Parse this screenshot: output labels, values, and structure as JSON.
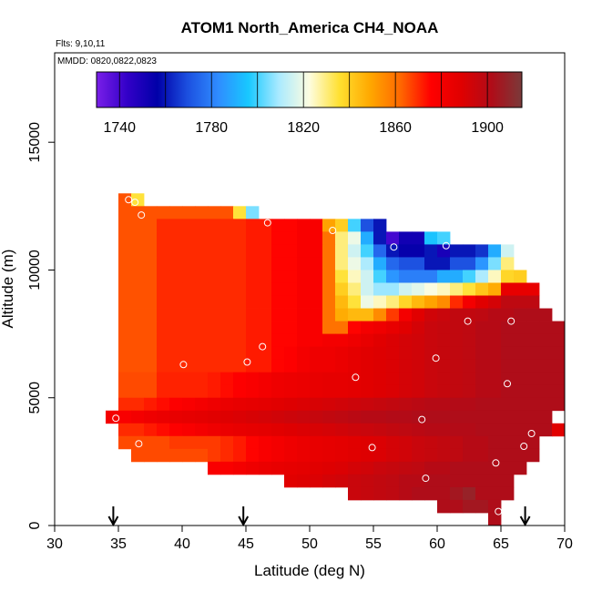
{
  "chart_data": {
    "type": "heatmap",
    "title": "ATOM1 North_America CH4_NOAA",
    "annotations": [
      "Flts: 9,10,11",
      "MMDD: 0820,0822,0823"
    ],
    "xlabel": "Latitude (deg N)",
    "ylabel": "Altitude (m)",
    "xlim": [
      30,
      70
    ],
    "ylim": [
      0,
      18500
    ],
    "x_ticks": [
      30,
      35,
      40,
      45,
      50,
      55,
      60,
      65,
      70
    ],
    "y_ticks": [
      0,
      5000,
      10000,
      15000
    ],
    "grid": false,
    "colorbar": {
      "range": [
        1730,
        1915
      ],
      "ticks": [
        1740,
        1780,
        1820,
        1860,
        1900
      ],
      "stops": [
        "#7a1fe8",
        "#3300c8",
        "#0000a8",
        "#1c50e0",
        "#2f8cff",
        "#18c8ff",
        "#aaeaff",
        "#fdfde0",
        "#ffe030",
        "#ffa800",
        "#ff6800",
        "#ff0000",
        "#e00000",
        "#b00c18",
        "#7a3a3a"
      ]
    },
    "cell_size": {
      "lat": 1.0,
      "alt": 500
    },
    "rows": [
      {
        "alt": 12750,
        "lat0": 35,
        "values": [
          1865,
          1835
        ]
      },
      {
        "alt": 12250,
        "lat0": 35,
        "values": [
          1865,
          1865,
          1865,
          1865,
          1865,
          1865,
          1865,
          1865,
          1865,
          1835,
          1805
        ]
      },
      {
        "alt": 11750,
        "lat0": 35,
        "values": [
          1865,
          1865,
          1865,
          1870,
          1870,
          1870,
          1870,
          1870,
          1870,
          1870,
          1872,
          1872,
          1875,
          1875,
          1878,
          1878,
          1850,
          1840,
          1800,
          1770,
          1760
        ]
      },
      {
        "alt": 11250,
        "lat0": 35,
        "values": [
          1865,
          1865,
          1865,
          1870,
          1870,
          1870,
          1870,
          1870,
          1870,
          1870,
          1872,
          1872,
          1875,
          1875,
          1878,
          1878,
          1860,
          1830,
          1820,
          1790,
          1760,
          1740,
          1752,
          1752,
          1795,
          1800
        ]
      },
      {
        "alt": 10750,
        "lat0": 35,
        "values": [
          1865,
          1865,
          1865,
          1870,
          1870,
          1870,
          1870,
          1870,
          1870,
          1870,
          1872,
          1872,
          1875,
          1875,
          1878,
          1878,
          1860,
          1830,
          1815,
          1800,
          1775,
          1760,
          1755,
          1755,
          1760,
          1750,
          1760,
          1760,
          1765,
          1790,
          1815
        ]
      },
      {
        "alt": 10250,
        "lat0": 35,
        "values": [
          1865,
          1865,
          1865,
          1870,
          1870,
          1870,
          1870,
          1870,
          1870,
          1870,
          1872,
          1872,
          1875,
          1875,
          1878,
          1878,
          1860,
          1830,
          1820,
          1810,
          1790,
          1775,
          1770,
          1770,
          1760,
          1760,
          1770,
          1770,
          1785,
          1805,
          1830
        ]
      },
      {
        "alt": 9750,
        "lat0": 35,
        "values": [
          1865,
          1865,
          1865,
          1870,
          1870,
          1870,
          1870,
          1870,
          1870,
          1870,
          1872,
          1872,
          1875,
          1875,
          1878,
          1878,
          1860,
          1835,
          1825,
          1815,
          1800,
          1785,
          1780,
          1780,
          1780,
          1790,
          1790,
          1800,
          1810,
          1825,
          1838,
          1840
        ]
      },
      {
        "alt": 9250,
        "lat0": 35,
        "values": [
          1865,
          1865,
          1865,
          1870,
          1870,
          1870,
          1870,
          1870,
          1870,
          1870,
          1872,
          1872,
          1875,
          1875,
          1878,
          1878,
          1860,
          1840,
          1830,
          1815,
          1808,
          1808,
          1815,
          1818,
          1822,
          1825,
          1830,
          1835,
          1842,
          1848,
          1885,
          1885,
          1885
        ]
      },
      {
        "alt": 8750,
        "lat0": 35,
        "values": [
          1865,
          1865,
          1865,
          1870,
          1870,
          1870,
          1870,
          1870,
          1870,
          1870,
          1872,
          1872,
          1875,
          1875,
          1878,
          1878,
          1860,
          1845,
          1835,
          1820,
          1825,
          1830,
          1838,
          1845,
          1850,
          1855,
          1870,
          1880,
          1888,
          1892,
          1898,
          1898,
          1898
        ]
      },
      {
        "alt": 8250,
        "lat0": 35,
        "values": [
          1865,
          1865,
          1865,
          1870,
          1870,
          1870,
          1870,
          1870,
          1870,
          1870,
          1872,
          1872,
          1875,
          1875,
          1878,
          1878,
          1860,
          1848,
          1845,
          1845,
          1855,
          1868,
          1880,
          1888,
          1893,
          1895,
          1897,
          1897,
          1898,
          1900,
          1900,
          1902,
          1902,
          1902
        ]
      },
      {
        "alt": 7750,
        "lat0": 35,
        "values": [
          1865,
          1865,
          1865,
          1870,
          1870,
          1870,
          1870,
          1870,
          1870,
          1870,
          1872,
          1872,
          1875,
          1875,
          1878,
          1878,
          1860,
          1860,
          1875,
          1880,
          1882,
          1885,
          1888,
          1892,
          1895,
          1896,
          1897,
          1898,
          1900,
          1900,
          1902,
          1902,
          1902,
          1902,
          1902
        ]
      },
      {
        "alt": 7250,
        "lat0": 35,
        "values": [
          1865,
          1865,
          1865,
          1870,
          1870,
          1870,
          1870,
          1870,
          1870,
          1870,
          1872,
          1872,
          1875,
          1875,
          1878,
          1878,
          1880,
          1880,
          1882,
          1885,
          1888,
          1890,
          1892,
          1893,
          1895,
          1896,
          1897,
          1898,
          1900,
          1900,
          1902,
          1902,
          1902,
          1902,
          1902
        ]
      },
      {
        "alt": 6750,
        "lat0": 35,
        "values": [
          1865,
          1865,
          1865,
          1870,
          1870,
          1870,
          1870,
          1870,
          1870,
          1870,
          1872,
          1872,
          1875,
          1876,
          1880,
          1882,
          1882,
          1884,
          1886,
          1888,
          1889,
          1890,
          1892,
          1893,
          1895,
          1896,
          1897,
          1898,
          1900,
          1900,
          1902,
          1902,
          1902,
          1902,
          1902
        ]
      },
      {
        "alt": 6250,
        "lat0": 35,
        "values": [
          1865,
          1865,
          1865,
          1870,
          1870,
          1870,
          1870,
          1870,
          1870,
          1870,
          1872,
          1872,
          1875,
          1876,
          1880,
          1882,
          1882,
          1884,
          1886,
          1888,
          1889,
          1890,
          1892,
          1893,
          1895,
          1896,
          1897,
          1898,
          1900,
          1900,
          1902,
          1902,
          1902,
          1902,
          1902
        ]
      },
      {
        "alt": 5750,
        "lat0": 35,
        "values": [
          1866,
          1866,
          1866,
          1871,
          1871,
          1871,
          1871,
          1872,
          1874,
          1876,
          1878,
          1880,
          1882,
          1883,
          1884,
          1885,
          1886,
          1886,
          1887,
          1888,
          1889,
          1890,
          1892,
          1893,
          1895,
          1896,
          1897,
          1898,
          1900,
          1900,
          1902,
          1902,
          1902,
          1902,
          1902
        ]
      },
      {
        "alt": 5250,
        "lat0": 35,
        "values": [
          1866,
          1866,
          1866,
          1871,
          1871,
          1871,
          1871,
          1872,
          1874,
          1876,
          1878,
          1880,
          1882,
          1883,
          1884,
          1885,
          1886,
          1886,
          1887,
          1888,
          1889,
          1890,
          1892,
          1893,
          1895,
          1896,
          1897,
          1898,
          1900,
          1900,
          1902,
          1902,
          1902,
          1902,
          1902
        ]
      },
      {
        "alt": 4750,
        "lat0": 35,
        "values": [
          1870,
          1870,
          1872,
          1874,
          1876,
          1878,
          1880,
          1882,
          1884,
          1885,
          1886,
          1887,
          1888,
          1889,
          1890,
          1891,
          1892,
          1893,
          1894,
          1895,
          1896,
          1897,
          1898,
          1899,
          1900,
          1900,
          1901,
          1901,
          1902,
          1902,
          1902,
          1902,
          1902,
          1902,
          1902
        ]
      },
      {
        "alt": 4250,
        "lat0": 34,
        "values": [
          1880,
          1878,
          1880,
          1882,
          1884,
          1885,
          1886,
          1887,
          1888,
          1889,
          1890,
          1891,
          1892,
          1893,
          1894,
          1895,
          1896,
          1897,
          1898,
          1899,
          1900,
          1900,
          1901,
          1901,
          1902,
          1902,
          1902,
          1902,
          1902,
          1902,
          1902,
          1902,
          1902,
          1902,
          1902
        ]
      },
      {
        "alt": 3750,
        "lat0": 35,
        "values": [
          1870,
          1870,
          1872,
          1874,
          1876,
          1878,
          1880,
          1882,
          1884,
          1885,
          1886,
          1887,
          1888,
          1889,
          1890,
          1891,
          1892,
          1893,
          1894,
          1895,
          1896,
          1897,
          1898,
          1899,
          1900,
          1900,
          1901,
          1901,
          1902,
          1902,
          1902,
          1902,
          1902,
          1902,
          1888
        ]
      },
      {
        "alt": 3250,
        "lat0": 35,
        "values": [
          1866,
          1866,
          1866,
          1866,
          1868,
          1868,
          1868,
          1868,
          1870,
          1872,
          1875,
          1878,
          1880,
          1882,
          1884,
          1885,
          1886,
          1887,
          1888,
          1889,
          1890,
          1892,
          1893,
          1895,
          1896,
          1897,
          1898,
          1900,
          1900,
          1902,
          1902,
          1902,
          1902
        ]
      },
      {
        "alt": 2750,
        "lat0": 36,
        "values": [
          1866,
          1866,
          1866,
          1866,
          1866,
          1866,
          1868,
          1870,
          1872,
          1875,
          1878,
          1880,
          1882,
          1884,
          1885,
          1886,
          1887,
          1888,
          1889,
          1890,
          1892,
          1893,
          1895,
          1896,
          1897,
          1898,
          1900,
          1900,
          1902,
          1902,
          1902,
          1902
        ]
      },
      {
        "alt": 2250,
        "lat0": 42,
        "values": [
          1878,
          1878,
          1880,
          1882,
          1884,
          1885,
          1886,
          1887,
          1888,
          1889,
          1890,
          1892,
          1893,
          1895,
          1896,
          1897,
          1898,
          1900,
          1900,
          1902,
          1902,
          1902,
          1902,
          1902,
          1902
        ]
      },
      {
        "alt": 1750,
        "lat0": 48,
        "values": [
          1888,
          1889,
          1890,
          1892,
          1893,
          1895,
          1896,
          1897,
          1898,
          1900,
          1900,
          1902,
          1902,
          1902,
          1902,
          1902,
          1902,
          1902
        ]
      },
      {
        "alt": 1250,
        "lat0": 53,
        "values": [
          1895,
          1896,
          1897,
          1898,
          1900,
          1902,
          1902,
          1902,
          1905,
          1908,
          1902,
          1902,
          1902
        ]
      },
      {
        "alt": 750,
        "lat0": 60,
        "values": [
          1902,
          1902,
          1905,
          1905,
          1902
        ]
      },
      {
        "alt": 250,
        "lat0": 64,
        "values": [
          1902
        ]
      }
    ],
    "points": [
      {
        "lat": 35.8,
        "alt": 12750
      },
      {
        "lat": 36.3,
        "alt": 12650
      },
      {
        "lat": 36.8,
        "alt": 12150
      },
      {
        "lat": 46.7,
        "alt": 11850
      },
      {
        "lat": 51.8,
        "alt": 11550
      },
      {
        "lat": 56.6,
        "alt": 10900
      },
      {
        "lat": 60.7,
        "alt": 10950
      },
      {
        "lat": 62.4,
        "alt": 8000
      },
      {
        "lat": 65.8,
        "alt": 8000
      },
      {
        "lat": 46.3,
        "alt": 7000
      },
      {
        "lat": 40.1,
        "alt": 6300
      },
      {
        "lat": 45.1,
        "alt": 6400
      },
      {
        "lat": 59.9,
        "alt": 6550
      },
      {
        "lat": 53.6,
        "alt": 5800
      },
      {
        "lat": 65.5,
        "alt": 5550
      },
      {
        "lat": 34.8,
        "alt": 4200
      },
      {
        "lat": 58.8,
        "alt": 4150
      },
      {
        "lat": 67.4,
        "alt": 3600
      },
      {
        "lat": 36.6,
        "alt": 3200
      },
      {
        "lat": 54.9,
        "alt": 3050
      },
      {
        "lat": 66.8,
        "alt": 3100
      },
      {
        "lat": 64.6,
        "alt": 2450
      },
      {
        "lat": 59.1,
        "alt": 1850
      },
      {
        "lat": 64.8,
        "alt": 550
      }
    ],
    "arrows_lat": [
      34.6,
      44.8,
      66.9
    ]
  }
}
